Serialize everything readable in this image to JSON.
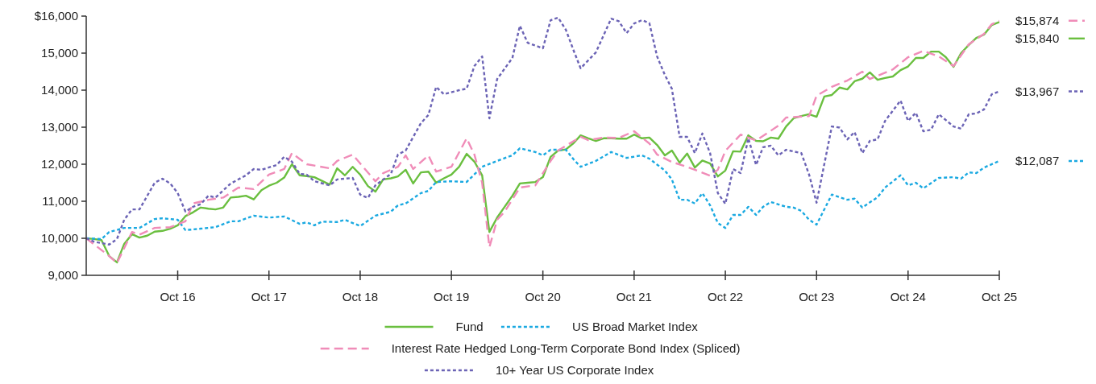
{
  "chart_data": {
    "type": "line",
    "legend": "bottom",
    "grid": false,
    "xlim": [
      "2015-10",
      "2025-10"
    ],
    "xticks": [
      {
        "value": "2016-10",
        "label": "Oct 16"
      },
      {
        "value": "2017-10",
        "label": "Oct 17"
      },
      {
        "value": "2018-10",
        "label": "Oct 18"
      },
      {
        "value": "2019-10",
        "label": "Oct 19"
      },
      {
        "value": "2020-10",
        "label": "Oct 20"
      },
      {
        "value": "2021-10",
        "label": "Oct 21"
      },
      {
        "value": "2022-10",
        "label": "Oct 22"
      },
      {
        "value": "2023-10",
        "label": "Oct 23"
      },
      {
        "value": "2024-10",
        "label": "Oct 24"
      },
      {
        "value": "2025-10",
        "label": "Oct 25"
      }
    ],
    "ylim": [
      9000,
      16000
    ],
    "yticks": [
      {
        "value": 9000,
        "label": "9,000"
      },
      {
        "value": 10000,
        "label": "10,000"
      },
      {
        "value": 11000,
        "label": "11,000"
      },
      {
        "value": 12000,
        "label": "12,000"
      },
      {
        "value": 13000,
        "label": "13,000"
      },
      {
        "value": 14000,
        "label": "14,000"
      },
      {
        "value": 15000,
        "label": "15,000"
      },
      {
        "value": 16000,
        "label": "$16,000"
      }
    ],
    "x": [
      "2015-10",
      "2015-11",
      "2015-12",
      "2016-01",
      "2016-02",
      "2016-03",
      "2016-04",
      "2016-05",
      "2016-06",
      "2016-07",
      "2016-08",
      "2016-09",
      "2016-10",
      "2016-11",
      "2016-12",
      "2017-01",
      "2017-02",
      "2017-03",
      "2017-04",
      "2017-05",
      "2017-06",
      "2017-07",
      "2017-08",
      "2017-09",
      "2017-10",
      "2017-11",
      "2017-12",
      "2018-01",
      "2018-02",
      "2018-03",
      "2018-04",
      "2018-05",
      "2018-06",
      "2018-07",
      "2018-08",
      "2018-09",
      "2018-10",
      "2018-11",
      "2018-12",
      "2019-01",
      "2019-02",
      "2019-03",
      "2019-04",
      "2019-05",
      "2019-06",
      "2019-07",
      "2019-08",
      "2019-09",
      "2019-10",
      "2019-11",
      "2019-12",
      "2020-01",
      "2020-02",
      "2020-03",
      "2020-04",
      "2020-05",
      "2020-06",
      "2020-07",
      "2020-08",
      "2020-09",
      "2020-10",
      "2020-11",
      "2020-12",
      "2021-01",
      "2021-02",
      "2021-03",
      "2021-04",
      "2021-05",
      "2021-06",
      "2021-07",
      "2021-08",
      "2021-09",
      "2021-10",
      "2021-11",
      "2021-12",
      "2022-01",
      "2022-02",
      "2022-03",
      "2022-04",
      "2022-05",
      "2022-06",
      "2022-07",
      "2022-08",
      "2022-09",
      "2022-10",
      "2022-11",
      "2022-12",
      "2023-01",
      "2023-02",
      "2023-03",
      "2023-04",
      "2023-05",
      "2023-06",
      "2023-07",
      "2023-08",
      "2023-09",
      "2023-10",
      "2023-11",
      "2023-12",
      "2024-01",
      "2024-02",
      "2024-03",
      "2024-04",
      "2024-05",
      "2024-06",
      "2024-07",
      "2024-08",
      "2024-09",
      "2024-10",
      "2024-11",
      "2024-12",
      "2025-01",
      "2025-02",
      "2025-03",
      "2025-04",
      "2025-05",
      "2025-06",
      "2025-07",
      "2025-08",
      "2025-09",
      "2025-10"
    ],
    "series": [
      {
        "name": "Fund",
        "color": "#6abf3f",
        "line_style": "solid",
        "values": [
          10000,
          9980,
          9950,
          9520,
          9350,
          9850,
          10110,
          10020,
          10070,
          10180,
          10200,
          10260,
          10350,
          10600,
          10700,
          10830,
          10800,
          10780,
          10830,
          11100,
          11120,
          11150,
          11050,
          11300,
          11420,
          11500,
          11640,
          12000,
          11700,
          11680,
          11650,
          11550,
          11450,
          11890,
          11700,
          11930,
          11720,
          11410,
          11260,
          11590,
          11620,
          11670,
          11850,
          11480,
          11780,
          11800,
          11500,
          11620,
          11720,
          11930,
          12280,
          12070,
          11700,
          10170,
          10560,
          10850,
          11150,
          11480,
          11500,
          11520,
          11650,
          12200,
          12370,
          12400,
          12570,
          12780,
          12700,
          12630,
          12700,
          12700,
          12690,
          12690,
          12800,
          12700,
          12720,
          12520,
          12240,
          12370,
          12040,
          12290,
          11910,
          12100,
          12020,
          11670,
          11830,
          12350,
          12340,
          12780,
          12630,
          12620,
          12720,
          12690,
          13020,
          13240,
          13300,
          13350,
          13280,
          13830,
          13870,
          14070,
          14020,
          14240,
          14310,
          14480,
          14280,
          14330,
          14370,
          14540,
          14640,
          14870,
          14870,
          15040,
          15040,
          14890,
          14630,
          15000,
          15220,
          15410,
          15500,
          15760,
          15840
        ],
        "value_labels": [
          null,
          null,
          null,
          null,
          null,
          null,
          null,
          null,
          null,
          null,
          null,
          null,
          null,
          null,
          null,
          null,
          null,
          null,
          null,
          null,
          null,
          null,
          null,
          null,
          null,
          null,
          null,
          null,
          null,
          null,
          null,
          null,
          null,
          null,
          null,
          null,
          null,
          null,
          null,
          null,
          null,
          null,
          null,
          null,
          null,
          null,
          null,
          null,
          null,
          null,
          null,
          null,
          null,
          null,
          null,
          null,
          null,
          null,
          null,
          null,
          null,
          null,
          null,
          null,
          null,
          null,
          null,
          null,
          null,
          null,
          null,
          null,
          null,
          null,
          null,
          null,
          null,
          null,
          null,
          null,
          null,
          null,
          null,
          null,
          null,
          null,
          null,
          null,
          null,
          null,
          null,
          null,
          null,
          null,
          null,
          null,
          null,
          null,
          null,
          null,
          null,
          null,
          null,
          null,
          null,
          null,
          null,
          null,
          null,
          null,
          null,
          null,
          null,
          null,
          null,
          null,
          null,
          null,
          null,
          null,
          "$15,840"
        ]
      },
      {
        "name": "US Broad Market Index",
        "color": "#1aa9e1",
        "line_style": "dotted",
        "x": [
          "2015-10",
          "2015-12",
          "2016-01",
          "2016-03",
          "2016-05",
          "2016-07",
          "2016-08",
          "2016-10",
          "2016-11",
          "2017-01",
          "2017-03",
          "2017-05",
          "2017-06",
          "2017-08",
          "2017-10",
          "2017-12",
          "2018-02",
          "2018-03",
          "2018-04",
          "2018-05",
          "2018-07",
          "2018-08",
          "2018-10",
          "2018-12",
          "2019-02",
          "2019-03",
          "2019-04",
          "2019-06",
          "2019-07",
          "2019-08",
          "2019-10",
          "2019-12",
          "2020-02",
          "2020-04",
          "2020-06",
          "2020-07",
          "2020-09",
          "2020-10",
          "2020-11",
          "2021-01",
          "2021-02",
          "2021-03",
          "2021-05",
          "2021-07",
          "2021-09",
          "2021-11",
          "2021-12",
          "2022-02",
          "2022-03",
          "2022-04",
          "2022-05",
          "2022-06",
          "2022-07",
          "2022-08",
          "2022-09",
          "2022-10",
          "2022-11",
          "2022-12",
          "2023-01",
          "2023-02",
          "2023-03",
          "2023-04",
          "2023-06",
          "2023-07",
          "2023-08",
          "2023-09",
          "2023-10",
          "2023-12",
          "2024-02",
          "2024-03",
          "2024-04",
          "2024-06",
          "2024-07",
          "2024-09",
          "2024-10",
          "2024-11",
          "2024-12",
          "2025-02",
          "2025-04",
          "2025-05",
          "2025-06",
          "2025-07",
          "2025-08",
          "2025-10"
        ],
        "values": [
          10000,
          9980,
          10170,
          10280,
          10280,
          10520,
          10540,
          10500,
          10220,
          10260,
          10300,
          10460,
          10460,
          10610,
          10560,
          10590,
          10390,
          10430,
          10350,
          10450,
          10440,
          10500,
          10330,
          10610,
          10720,
          10890,
          10940,
          11220,
          11280,
          11520,
          11540,
          11520,
          11930,
          12090,
          12240,
          12430,
          12330,
          12240,
          12390,
          12390,
          12130,
          11930,
          12090,
          12330,
          12170,
          12240,
          12150,
          11830,
          11590,
          11040,
          11040,
          10940,
          11220,
          10890,
          10410,
          10280,
          10630,
          10630,
          10850,
          10630,
          10850,
          10980,
          10850,
          10830,
          10740,
          10500,
          10370,
          11180,
          11040,
          11070,
          10830,
          11110,
          11370,
          11700,
          11430,
          11500,
          11350,
          11630,
          11650,
          11610,
          11780,
          11760,
          11910,
          12087
        ],
        "value_labels": [
          null,
          null,
          null,
          null,
          null,
          null,
          null,
          null,
          null,
          null,
          null,
          null,
          null,
          null,
          null,
          null,
          null,
          null,
          null,
          null,
          null,
          null,
          null,
          null,
          null,
          null,
          null,
          null,
          null,
          null,
          null,
          null,
          null,
          null,
          null,
          null,
          null,
          null,
          null,
          null,
          null,
          null,
          null,
          null,
          null,
          null,
          null,
          null,
          null,
          null,
          null,
          null,
          null,
          null,
          null,
          null,
          null,
          null,
          null,
          null,
          null,
          null,
          null,
          null,
          null,
          null,
          null,
          null,
          null,
          null,
          null,
          null,
          null,
          null,
          null,
          null,
          null,
          null,
          null,
          null,
          null,
          null,
          null,
          "$12,087"
        ]
      },
      {
        "name": "Interest Rate Hedged Long-Term Corporate Bond Index (Spliced)",
        "color": "#f08cb8",
        "line_style": "dashed",
        "x": [
          "2015-10",
          "2016-01",
          "2016-02",
          "2016-04",
          "2016-05",
          "2016-07",
          "2016-09",
          "2016-11",
          "2016-12",
          "2017-02",
          "2017-04",
          "2017-06",
          "2017-08",
          "2017-10",
          "2017-12",
          "2018-01",
          "2018-03",
          "2018-06",
          "2018-07",
          "2018-09",
          "2018-10",
          "2018-12",
          "2019-01",
          "2019-03",
          "2019-04",
          "2019-05",
          "2019-07",
          "2019-08",
          "2019-10",
          "2019-12",
          "2020-01",
          "2020-02",
          "2020-03",
          "2020-04",
          "2020-05",
          "2020-07",
          "2020-09",
          "2020-11",
          "2020-12",
          "2021-03",
          "2021-04",
          "2021-06",
          "2021-08",
          "2021-10",
          "2021-12",
          "2022-01",
          "2022-03",
          "2022-05",
          "2022-08",
          "2022-09",
          "2022-10",
          "2022-12",
          "2023-02",
          "2023-05",
          "2023-06",
          "2023-09",
          "2023-10",
          "2023-12",
          "2024-02",
          "2024-04",
          "2024-05",
          "2024-08",
          "2024-10",
          "2024-12",
          "2025-02",
          "2025-04",
          "2025-06",
          "2025-08",
          "2025-09",
          "2025-10"
        ],
        "values": [
          10000,
          9520,
          9330,
          10170,
          10100,
          10280,
          10300,
          10460,
          10940,
          11040,
          11100,
          11370,
          11330,
          11720,
          11870,
          12300,
          12000,
          11890,
          12090,
          12260,
          12020,
          11540,
          11760,
          11930,
          12240,
          11870,
          12240,
          11800,
          11930,
          12700,
          12260,
          11500,
          9760,
          10500,
          10720,
          11370,
          11430,
          12090,
          12370,
          12740,
          12650,
          12720,
          12710,
          12890,
          12560,
          12260,
          12060,
          11930,
          11690,
          11850,
          12360,
          12800,
          12640,
          13040,
          13260,
          13300,
          13850,
          14090,
          14260,
          14500,
          14300,
          14560,
          14890,
          15060,
          14910,
          14650,
          15240,
          15520,
          15780,
          15874
        ],
        "value_labels": [
          null,
          null,
          null,
          null,
          null,
          null,
          null,
          null,
          null,
          null,
          null,
          null,
          null,
          null,
          null,
          null,
          null,
          null,
          null,
          null,
          null,
          null,
          null,
          null,
          null,
          null,
          null,
          null,
          null,
          null,
          null,
          null,
          null,
          null,
          null,
          null,
          null,
          null,
          null,
          null,
          null,
          null,
          null,
          null,
          null,
          null,
          null,
          null,
          null,
          null,
          null,
          null,
          null,
          null,
          null,
          null,
          null,
          null,
          null,
          null,
          null,
          null,
          null,
          null,
          null,
          null,
          null,
          null,
          null,
          "$15,874"
        ]
      },
      {
        "name": "10+ Year US Corporate Index",
        "color": "#6b63b5",
        "line_style": "dotted",
        "x": [
          "2015-10",
          "2015-11",
          "2016-01",
          "2016-02",
          "2016-03",
          "2016-04",
          "2016-05",
          "2016-07",
          "2016-08",
          "2016-09",
          "2016-10",
          "2016-11",
          "2016-12",
          "2017-01",
          "2017-02",
          "2017-03",
          "2017-05",
          "2017-07",
          "2017-08",
          "2017-09",
          "2017-11",
          "2017-12",
          "2018-01",
          "2018-02",
          "2018-03",
          "2018-04",
          "2018-06",
          "2018-07",
          "2018-09",
          "2018-10",
          "2018-11",
          "2018-12",
          "2019-02",
          "2019-03",
          "2019-04",
          "2019-06",
          "2019-07",
          "2019-08",
          "2019-09",
          "2019-11",
          "2019-12",
          "2020-01",
          "2020-02",
          "2020-03",
          "2020-04",
          "2020-06",
          "2020-07",
          "2020-08",
          "2020-10",
          "2020-11",
          "2020-12",
          "2021-01",
          "2021-02",
          "2021-03",
          "2021-05",
          "2021-07",
          "2021-08",
          "2021-09",
          "2021-10",
          "2021-11",
          "2021-12",
          "2022-01",
          "2022-02",
          "2022-03",
          "2022-04",
          "2022-05",
          "2022-06",
          "2022-07",
          "2022-08",
          "2022-09",
          "2022-10",
          "2022-11",
          "2022-12",
          "2023-01",
          "2023-02",
          "2023-03",
          "2023-04",
          "2023-05",
          "2023-06",
          "2023-08",
          "2023-09",
          "2023-10",
          "2023-12",
          "2024-01",
          "2024-02",
          "2024-03",
          "2024-04",
          "2024-05",
          "2024-06",
          "2024-07",
          "2024-09",
          "2024-10",
          "2024-11",
          "2024-12",
          "2025-01",
          "2025-02",
          "2025-04",
          "2025-05",
          "2025-06",
          "2025-07",
          "2025-08",
          "2025-09",
          "2025-10"
        ],
        "values": [
          10000,
          9910,
          9830,
          9980,
          10500,
          10780,
          10780,
          11500,
          11610,
          11480,
          11220,
          10720,
          10850,
          10920,
          11150,
          11100,
          11480,
          11700,
          11870,
          11850,
          11980,
          12200,
          12070,
          11740,
          11720,
          11540,
          11430,
          11590,
          11630,
          11180,
          11090,
          11430,
          11740,
          12260,
          12370,
          13110,
          13330,
          14090,
          13890,
          14000,
          14040,
          14650,
          14910,
          13240,
          14300,
          14870,
          15740,
          15280,
          15130,
          15890,
          15960,
          15630,
          15070,
          14590,
          15020,
          15930,
          15860,
          15540,
          15800,
          15890,
          15810,
          14910,
          14410,
          14040,
          12740,
          12740,
          12300,
          12830,
          12300,
          11220,
          10930,
          11870,
          11760,
          12700,
          11980,
          12460,
          12500,
          12240,
          12390,
          12300,
          11720,
          10960,
          13020,
          12990,
          12670,
          12870,
          12300,
          12630,
          12670,
          13170,
          13720,
          13170,
          13390,
          12890,
          12930,
          13350,
          13020,
          12960,
          13350,
          13370,
          13480,
          13890,
          13967
        ],
        "value_labels": [
          null,
          null,
          null,
          null,
          null,
          null,
          null,
          null,
          null,
          null,
          null,
          null,
          null,
          null,
          null,
          null,
          null,
          null,
          null,
          null,
          null,
          null,
          null,
          null,
          null,
          null,
          null,
          null,
          null,
          null,
          null,
          null,
          null,
          null,
          null,
          null,
          null,
          null,
          null,
          null,
          null,
          null,
          null,
          null,
          null,
          null,
          null,
          null,
          null,
          null,
          null,
          null,
          null,
          null,
          null,
          null,
          null,
          null,
          null,
          null,
          null,
          null,
          null,
          null,
          null,
          null,
          null,
          null,
          null,
          null,
          null,
          null,
          null,
          null,
          null,
          null,
          null,
          null,
          null,
          null,
          null,
          null,
          null,
          null,
          null,
          null,
          null,
          null,
          null,
          null,
          null,
          null,
          null,
          null,
          null,
          null,
          null,
          null,
          null,
          null,
          null,
          null,
          "$13,967"
        ]
      }
    ]
  }
}
